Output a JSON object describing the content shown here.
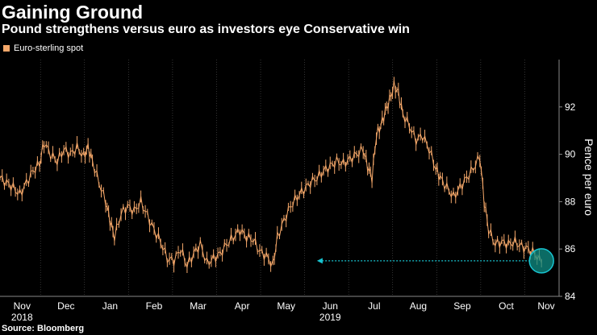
{
  "title": "Gaining Ground",
  "subtitle": "Pound strengthens versus euro as investors eye Conservative win",
  "source": "Source: Bloomberg",
  "colors": {
    "background": "#000000",
    "series": "#f5a86a",
    "annotation": "#18c4d1",
    "circle_fill": "#0f8f86",
    "gridline": "#555555"
  },
  "chart_data": {
    "type": "line",
    "title": "Gaining Ground",
    "subtitle": "Pound strengthens versus euro as investors eye Conservative win",
    "legend": [
      "Euro-sterling spot"
    ],
    "legend_placement": "top-left",
    "xlabel": "",
    "ylabel": "Pence per euro",
    "ylim": [
      84,
      94
    ],
    "yticks": [
      84,
      86,
      88,
      90,
      92
    ],
    "xlim": [
      0,
      12.7
    ],
    "grid": "vertical",
    "x_month_labels": [
      "Nov",
      "Dec",
      "Jan",
      "Feb",
      "Mar",
      "Apr",
      "May",
      "Jun",
      "Jul",
      "Aug",
      "Sep",
      "Oct",
      "Nov"
    ],
    "x_year_labels": [
      {
        "label": "2018",
        "month_index": 0
      },
      {
        "label": "2019",
        "month_index": 7
      }
    ],
    "series": [
      {
        "name": "Euro-sterling spot",
        "points": [
          [
            0.0,
            89.0
          ],
          [
            0.15,
            88.8
          ],
          [
            0.3,
            88.6
          ],
          [
            0.45,
            88.3
          ],
          [
            0.6,
            88.8
          ],
          [
            0.75,
            89.3
          ],
          [
            0.9,
            89.6
          ],
          [
            1.0,
            90.5
          ],
          [
            1.15,
            90.0
          ],
          [
            1.3,
            89.7
          ],
          [
            1.45,
            90.2
          ],
          [
            1.6,
            90.0
          ],
          [
            1.75,
            90.3
          ],
          [
            1.9,
            89.9
          ],
          [
            2.0,
            90.3
          ],
          [
            2.1,
            89.7
          ],
          [
            2.25,
            88.8
          ],
          [
            2.4,
            88.0
          ],
          [
            2.5,
            87.2
          ],
          [
            2.6,
            86.5
          ],
          [
            2.75,
            87.5
          ],
          [
            2.9,
            87.8
          ],
          [
            3.05,
            87.6
          ],
          [
            3.2,
            88.0
          ],
          [
            3.35,
            87.4
          ],
          [
            3.5,
            86.8
          ],
          [
            3.65,
            86.3
          ],
          [
            3.8,
            85.6
          ],
          [
            3.95,
            85.5
          ],
          [
            4.1,
            86.0
          ],
          [
            4.25,
            85.3
          ],
          [
            4.4,
            85.8
          ],
          [
            4.55,
            86.2
          ],
          [
            4.7,
            85.4
          ],
          [
            4.85,
            85.6
          ],
          [
            5.0,
            85.8
          ],
          [
            5.15,
            86.2
          ],
          [
            5.3,
            86.5
          ],
          [
            5.45,
            86.8
          ],
          [
            5.6,
            86.5
          ],
          [
            5.75,
            86.4
          ],
          [
            5.9,
            85.9
          ],
          [
            6.05,
            85.7
          ],
          [
            6.2,
            85.3
          ],
          [
            6.3,
            86.5
          ],
          [
            6.45,
            87.2
          ],
          [
            6.6,
            87.8
          ],
          [
            6.75,
            88.2
          ],
          [
            6.9,
            88.5
          ],
          [
            7.05,
            88.8
          ],
          [
            7.2,
            89.0
          ],
          [
            7.35,
            89.3
          ],
          [
            7.5,
            89.5
          ],
          [
            7.65,
            89.7
          ],
          [
            7.8,
            89.6
          ],
          [
            7.95,
            89.8
          ],
          [
            8.1,
            90.0
          ],
          [
            8.25,
            90.2
          ],
          [
            8.35,
            89.5
          ],
          [
            8.45,
            89.0
          ],
          [
            8.55,
            90.8
          ],
          [
            8.65,
            91.2
          ],
          [
            8.75,
            91.8
          ],
          [
            8.85,
            92.3
          ],
          [
            8.95,
            92.9
          ],
          [
            9.05,
            92.6
          ],
          [
            9.15,
            91.7
          ],
          [
            9.3,
            91.2
          ],
          [
            9.45,
            90.6
          ],
          [
            9.6,
            90.8
          ],
          [
            9.75,
            90.2
          ],
          [
            9.9,
            89.4
          ],
          [
            10.0,
            89.0
          ],
          [
            10.15,
            88.6
          ],
          [
            10.3,
            88.2
          ],
          [
            10.45,
            88.6
          ],
          [
            10.6,
            89.0
          ],
          [
            10.75,
            89.4
          ],
          [
            10.9,
            89.9
          ],
          [
            11.0,
            88.0
          ],
          [
            11.1,
            86.8
          ],
          [
            11.25,
            86.2
          ],
          [
            11.4,
            86.3
          ],
          [
            11.55,
            86.2
          ],
          [
            11.7,
            86.3
          ],
          [
            11.85,
            86.1
          ],
          [
            12.0,
            86.0
          ],
          [
            12.15,
            85.8
          ],
          [
            12.3,
            85.4
          ]
        ]
      }
    ],
    "annotations": [
      {
        "type": "arrow",
        "from": [
          12.3,
          85.5
        ],
        "to": [
          7.2,
          85.5
        ]
      },
      {
        "type": "circle",
        "center": [
          12.3,
          85.5
        ]
      }
    ]
  }
}
